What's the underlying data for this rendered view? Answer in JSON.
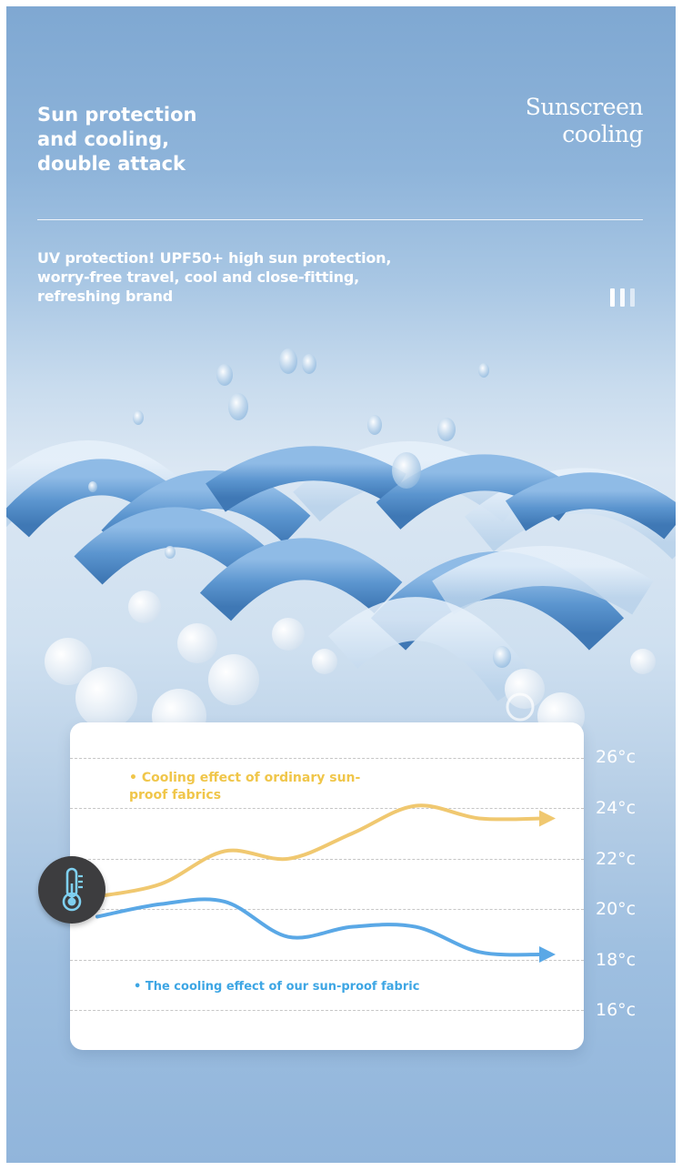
{
  "header": {
    "headline_lines": [
      "Sun protection",
      "and cooling,",
      "double attack"
    ],
    "script_title_lines": [
      "Sunscreen",
      "cooling"
    ],
    "description_lines": [
      "UV protection! UPF50+ high sun protection,",
      "worry-free travel, cool and close-fitting,",
      "refreshing brand"
    ]
  },
  "icons": {
    "bars": "vertical-bars-icon",
    "thermometer": "thermometer-icon"
  },
  "chart_data": {
    "type": "line",
    "y_tick_labels": [
      "26°c",
      "24°c",
      "22°c",
      "20°c",
      "18°c",
      "16°c"
    ],
    "ylim": [
      16,
      26
    ],
    "x": [
      0,
      1,
      2,
      3,
      4,
      5,
      6,
      7
    ],
    "series": [
      {
        "name": "• Cooling effect of ordinary sun-proof fabrics",
        "color": "#f0c870",
        "values": [
          20.5,
          21.0,
          22.3,
          22.0,
          23.0,
          24.1,
          23.6,
          23.6
        ]
      },
      {
        "name": "• The cooling effect of our sun-proof fabric",
        "color": "#5aa8e6",
        "values": [
          19.7,
          20.2,
          20.3,
          18.9,
          19.3,
          19.3,
          18.3,
          18.2
        ]
      }
    ],
    "legend_ordinary": "• Cooling effect of ordinary sun-proof fabrics",
    "legend_ours": "• The cooling effect of our sun-proof fabric",
    "grid": true
  },
  "colors": {
    "ordinary_line": "#f0c870",
    "ours_line": "#5aa8e6",
    "ordinary_legend_text": "#f0c64a",
    "ours_legend_text": "#3ea6e4",
    "thermo_badge": "#3d3d3f",
    "thermo_glyph": "#7fd0f0"
  }
}
